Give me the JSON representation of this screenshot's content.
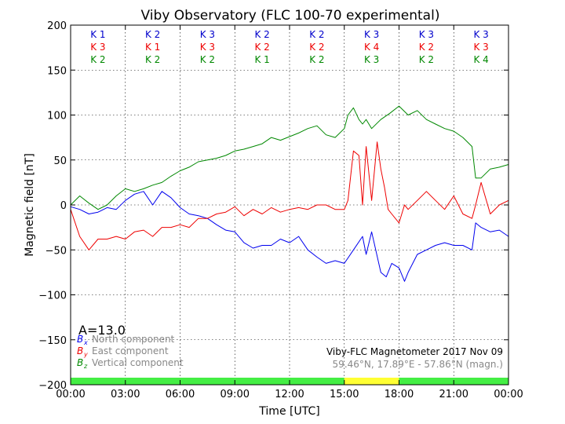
{
  "chart_data": {
    "type": "line",
    "title": "Viby Observatory (FLC 100-70 experimental)",
    "xlabel": "Time [UTC]",
    "ylabel": "Magnetic field [nT]",
    "xlim": [
      0,
      24
    ],
    "ylim": [
      -200,
      200
    ],
    "x_ticks": [
      {
        "value": 0,
        "label": "00:00"
      },
      {
        "value": 3,
        "label": "03:00"
      },
      {
        "value": 6,
        "label": "06:00"
      },
      {
        "value": 9,
        "label": "09:00"
      },
      {
        "value": 12,
        "label": "12:00"
      },
      {
        "value": 15,
        "label": "15:00"
      },
      {
        "value": 18,
        "label": "18:00"
      },
      {
        "value": 21,
        "label": "21:00"
      },
      {
        "value": 24,
        "label": "00:00"
      }
    ],
    "y_ticks": [
      {
        "value": 200,
        "label": "200"
      },
      {
        "value": 150,
        "label": "150"
      },
      {
        "value": 100,
        "label": "100"
      },
      {
        "value": 50,
        "label": "50"
      },
      {
        "value": 0,
        "label": "0"
      },
      {
        "value": -50,
        "label": "−50"
      },
      {
        "value": -100,
        "label": "−100"
      },
      {
        "value": -150,
        "label": "−150"
      },
      {
        "value": -200,
        "label": "−200"
      }
    ],
    "grid": true,
    "k_index_labels": [
      {
        "slot": 0,
        "north": "K 1",
        "east": "K 3",
        "vertical": "K 2"
      },
      {
        "slot": 1,
        "north": "K 2",
        "east": "K 1",
        "vertical": "K 2"
      },
      {
        "slot": 2,
        "north": "K 3",
        "east": "K 3",
        "vertical": "K 2"
      },
      {
        "slot": 3,
        "north": "K 2",
        "east": "K 2",
        "vertical": "K 1"
      },
      {
        "slot": 4,
        "north": "K 2",
        "east": "K 2",
        "vertical": "K 2"
      },
      {
        "slot": 5,
        "north": "K 3",
        "east": "K 4",
        "vertical": "K 3"
      },
      {
        "slot": 6,
        "north": "K 3",
        "east": "K 2",
        "vertical": "K 2"
      },
      {
        "slot": 7,
        "north": "K 3",
        "east": "K 3",
        "vertical": "K 4"
      }
    ],
    "activity_bar": [
      {
        "start": 0,
        "end": 15,
        "color": "#44ee44"
      },
      {
        "start": 15,
        "end": 18,
        "color": "#ffff33"
      },
      {
        "start": 18,
        "end": 24,
        "color": "#44ee44"
      }
    ],
    "a_index_text": "A=13.0",
    "legend": [
      {
        "symbol_main": "B",
        "symbol_sub": "x",
        "label": "North component",
        "color": "#0000ee"
      },
      {
        "symbol_main": "B",
        "symbol_sub": "y",
        "label": "East component",
        "color": "#ee0000"
      },
      {
        "symbol_main": "B",
        "symbol_sub": "z",
        "label": "Vertical component",
        "color": "#008800"
      }
    ],
    "info_line_1": "Viby-FLC Magnetometer 2017 Nov 09",
    "info_line_2": "59.46°N, 17.89°E - 57.86°N (magn.)",
    "colors": {
      "north": "#0000ee",
      "east": "#ee0000",
      "vertical": "#008800",
      "k_north": "#0000cc",
      "k_east": "#ee0000",
      "k_vertical": "#008800",
      "legend_text": "#888888"
    },
    "series": [
      {
        "name": "North component",
        "key": "north",
        "x": [
          0,
          0.5,
          1,
          1.5,
          2,
          2.5,
          3,
          3.5,
          4,
          4.5,
          5,
          5.5,
          6,
          6.5,
          7,
          7.5,
          8,
          8.5,
          9,
          9.5,
          10,
          10.5,
          11,
          11.5,
          12,
          12.5,
          13,
          13.5,
          14,
          14.5,
          15,
          15.5,
          16,
          16.2,
          16.5,
          17,
          17.3,
          17.6,
          18,
          18.3,
          18.5,
          19,
          19.5,
          20,
          20.5,
          21,
          21.5,
          22,
          22.2,
          22.5,
          23,
          23.5,
          24
        ],
        "values": [
          -2,
          -5,
          -10,
          -8,
          -3,
          -5,
          5,
          12,
          15,
          0,
          15,
          8,
          -3,
          -10,
          -12,
          -15,
          -22,
          -28,
          -30,
          -42,
          -48,
          -45,
          -45,
          -38,
          -42,
          -35,
          -50,
          -58,
          -65,
          -62,
          -65,
          -50,
          -35,
          -55,
          -30,
          -75,
          -80,
          -65,
          -70,
          -85,
          -75,
          -55,
          -50,
          -45,
          -42,
          -45,
          -45,
          -50,
          -20,
          -25,
          -30,
          -28,
          -35
        ]
      },
      {
        "name": "East component",
        "key": "east",
        "x": [
          0,
          0.5,
          1,
          1.5,
          2,
          2.5,
          3,
          3.5,
          4,
          4.5,
          5,
          5.5,
          6,
          6.5,
          7,
          7.5,
          8,
          8.5,
          9,
          9.5,
          10,
          10.5,
          11,
          11.5,
          12,
          12.5,
          13,
          13.5,
          14,
          14.5,
          15,
          15.2,
          15.5,
          15.8,
          16,
          16.2,
          16.5,
          16.8,
          17,
          17.2,
          17.4,
          17.6,
          18,
          18.3,
          18.5,
          19,
          19.5,
          20,
          20.5,
          21,
          21.5,
          22,
          22.2,
          22.5,
          23,
          23.5,
          24
        ],
        "values": [
          -5,
          -35,
          -50,
          -38,
          -38,
          -35,
          -38,
          -30,
          -28,
          -35,
          -25,
          -25,
          -22,
          -25,
          -15,
          -15,
          -10,
          -8,
          -2,
          -12,
          -5,
          -10,
          -3,
          -8,
          -5,
          -3,
          -5,
          0,
          0,
          -5,
          -5,
          5,
          60,
          55,
          0,
          65,
          5,
          70,
          40,
          20,
          -5,
          -10,
          -20,
          0,
          -5,
          5,
          15,
          5,
          -5,
          10,
          -10,
          -15,
          0,
          25,
          -10,
          0,
          5
        ]
      },
      {
        "name": "Vertical component",
        "key": "vertical",
        "x": [
          0,
          0.5,
          1,
          1.5,
          2,
          2.5,
          3,
          3.5,
          4,
          4.5,
          5,
          5.5,
          6,
          6.5,
          7,
          7.5,
          8,
          8.5,
          9,
          9.5,
          10,
          10.5,
          11,
          11.5,
          12,
          12.5,
          13,
          13.5,
          14,
          14.5,
          15,
          15.2,
          15.5,
          15.8,
          16,
          16.2,
          16.5,
          17,
          17.5,
          18,
          18.5,
          19,
          19.5,
          20,
          20.5,
          21,
          21.5,
          22,
          22.2,
          22.5,
          23,
          23.5,
          24
        ],
        "values": [
          0,
          10,
          2,
          -5,
          0,
          10,
          18,
          15,
          18,
          22,
          25,
          32,
          38,
          42,
          48,
          50,
          52,
          55,
          60,
          62,
          65,
          68,
          75,
          72,
          76,
          80,
          85,
          88,
          78,
          75,
          85,
          100,
          108,
          95,
          90,
          95,
          85,
          95,
          102,
          110,
          100,
          105,
          95,
          90,
          85,
          82,
          75,
          65,
          30,
          30,
          40,
          42,
          45
        ]
      }
    ]
  }
}
